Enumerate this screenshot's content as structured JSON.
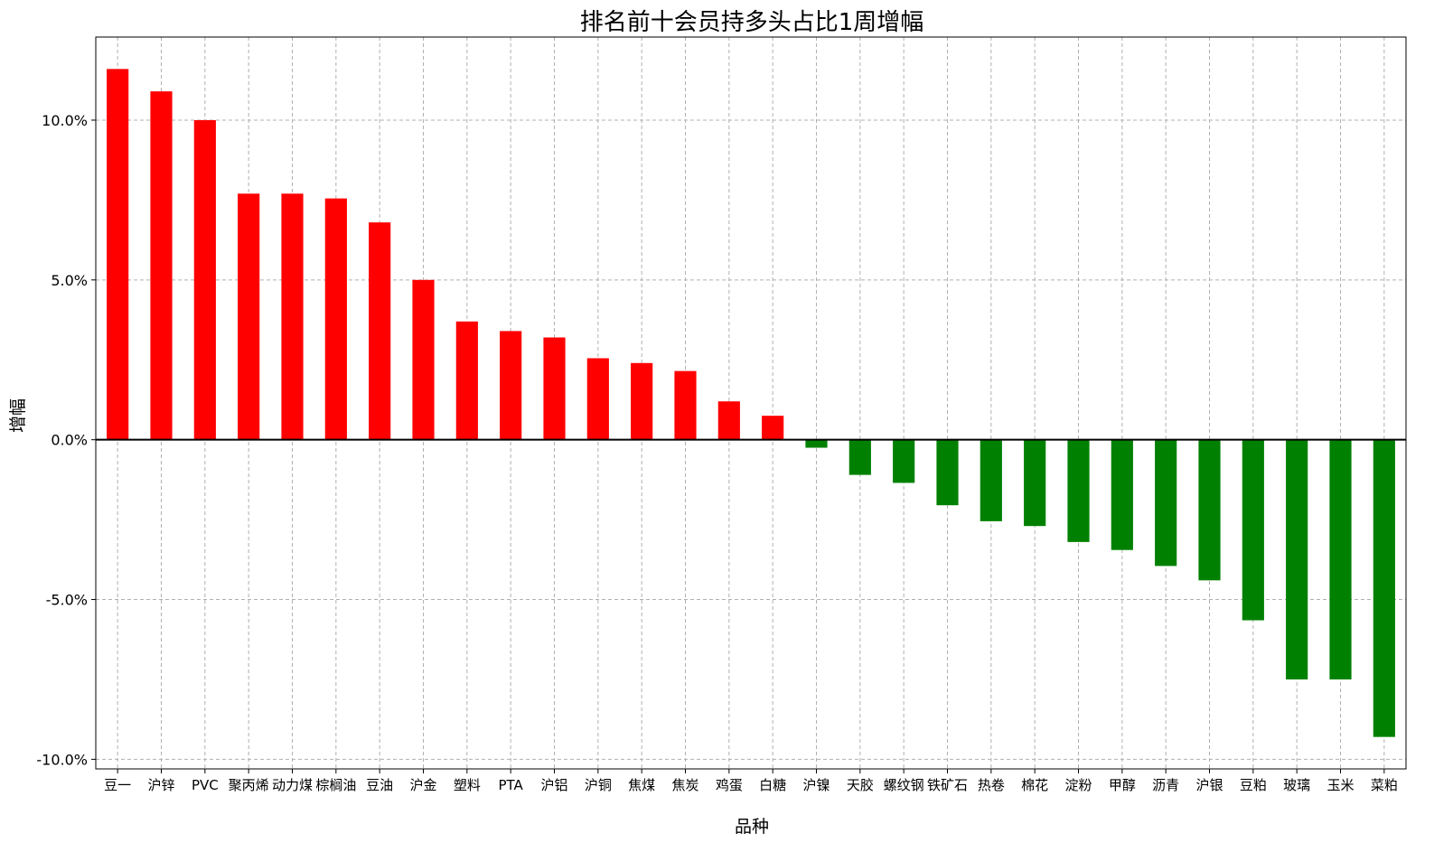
{
  "chart_data": {
    "type": "bar",
    "title": "排名前十会员持多头占比1周增幅",
    "xlabel": "品种",
    "ylabel": "增幅",
    "ylim": [
      -10.3,
      12.6
    ],
    "yticks": [
      -10,
      -5,
      0,
      5,
      10
    ],
    "ytick_labels": [
      "-10.0%",
      "-5.0%",
      "0.0%",
      "5.0%",
      "10.0%"
    ],
    "grid": true,
    "categories": [
      "豆一",
      "沪锌",
      "PVC",
      "聚丙烯",
      "动力煤",
      "棕榈油",
      "豆油",
      "沪金",
      "塑料",
      "PTA",
      "沪铝",
      "沪铜",
      "焦煤",
      "焦炭",
      "鸡蛋",
      "白糖",
      "沪镍",
      "天胶",
      "螺纹钢",
      "铁矿石",
      "热卷",
      "棉花",
      "淀粉",
      "甲醇",
      "沥青",
      "沪银",
      "豆粕",
      "玻璃",
      "玉米",
      "菜粕"
    ],
    "values": [
      11.6,
      10.9,
      10.0,
      7.7,
      7.7,
      7.55,
      6.8,
      5.0,
      3.7,
      3.4,
      3.2,
      2.55,
      2.4,
      2.15,
      1.2,
      0.75,
      -0.25,
      -1.1,
      -1.35,
      -2.05,
      -2.55,
      -2.7,
      -3.2,
      -3.45,
      -3.95,
      -4.4,
      -5.65,
      -7.5,
      -7.5,
      -9.3
    ],
    "colors": {
      "positive": "#ff0000",
      "negative": "#008000",
      "zero_line": "#000000"
    }
  }
}
